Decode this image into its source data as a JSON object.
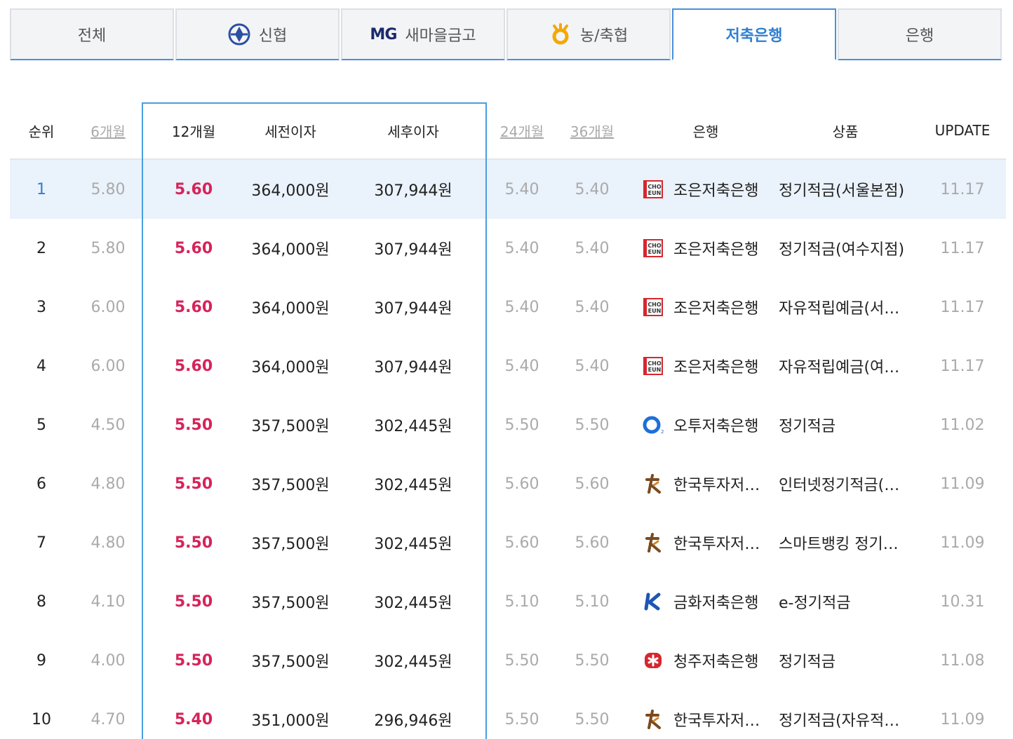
{
  "tabs": [
    {
      "label": "전체",
      "icon": "",
      "active": false
    },
    {
      "label": "신협",
      "icon": "shinhyup-logo-icon",
      "active": false
    },
    {
      "label": "새마을금고",
      "icon": "mg-logo-icon",
      "prefix": "MG",
      "active": false
    },
    {
      "label": "농/축협",
      "icon": "nh-logo-icon",
      "active": false
    },
    {
      "label": "저축은행",
      "icon": "",
      "active": true
    },
    {
      "label": "은행",
      "icon": "",
      "active": false
    }
  ],
  "header": {
    "rank": "순위",
    "m6": "6개월",
    "m12": "12개월",
    "pre_tax": "세전이자",
    "post_tax": "세후이자",
    "m24": "24개월",
    "m36": "36개월",
    "bank": "은행",
    "product": "상품",
    "update": "UPDATE"
  },
  "rows": [
    {
      "rank": "1",
      "m6": "5.80",
      "m12": "5.60",
      "pre": "364,000원",
      "post": "307,944원",
      "m24": "5.40",
      "m36": "5.40",
      "bank": "조은저축은행",
      "bank_icon": "choeun-logo-icon",
      "product": "정기적금(서울본점)",
      "update": "11.17"
    },
    {
      "rank": "2",
      "m6": "5.80",
      "m12": "5.60",
      "pre": "364,000원",
      "post": "307,944원",
      "m24": "5.40",
      "m36": "5.40",
      "bank": "조은저축은행",
      "bank_icon": "choeun-logo-icon",
      "product": "정기적금(여수지점)",
      "update": "11.17"
    },
    {
      "rank": "3",
      "m6": "6.00",
      "m12": "5.60",
      "pre": "364,000원",
      "post": "307,944원",
      "m24": "5.40",
      "m36": "5.40",
      "bank": "조은저축은행",
      "bank_icon": "choeun-logo-icon",
      "product": "자유적립예금(서…",
      "update": "11.17"
    },
    {
      "rank": "4",
      "m6": "6.00",
      "m12": "5.60",
      "pre": "364,000원",
      "post": "307,944원",
      "m24": "5.40",
      "m36": "5.40",
      "bank": "조은저축은행",
      "bank_icon": "choeun-logo-icon",
      "product": "자유적립예금(여…",
      "update": "11.17"
    },
    {
      "rank": "5",
      "m6": "4.50",
      "m12": "5.50",
      "pre": "357,500원",
      "post": "302,445원",
      "m24": "5.50",
      "m36": "5.50",
      "bank": "오투저축은행",
      "bank_icon": "otoo-logo-icon",
      "product": "정기적금",
      "update": "11.02"
    },
    {
      "rank": "6",
      "m6": "4.80",
      "m12": "5.50",
      "pre": "357,500원",
      "post": "302,445원",
      "m24": "5.60",
      "m36": "5.60",
      "bank": "한국투자저…",
      "bank_icon": "korea-investment-logo-icon",
      "product": "인터넷정기적금(…",
      "update": "11.09"
    },
    {
      "rank": "7",
      "m6": "4.80",
      "m12": "5.50",
      "pre": "357,500원",
      "post": "302,445원",
      "m24": "5.60",
      "m36": "5.60",
      "bank": "한국투자저…",
      "bank_icon": "korea-investment-logo-icon",
      "product": "스마트뱅킹 정기…",
      "update": "11.09"
    },
    {
      "rank": "8",
      "m6": "4.10",
      "m12": "5.50",
      "pre": "357,500원",
      "post": "302,445원",
      "m24": "5.10",
      "m36": "5.10",
      "bank": "금화저축은행",
      "bank_icon": "geumhwa-logo-icon",
      "product": "e-정기적금",
      "update": "10.31"
    },
    {
      "rank": "9",
      "m6": "4.00",
      "m12": "5.50",
      "pre": "357,500원",
      "post": "302,445원",
      "m24": "5.50",
      "m36": "5.50",
      "bank": "청주저축은행",
      "bank_icon": "cheongju-logo-icon",
      "product": "정기적금",
      "update": "11.08"
    },
    {
      "rank": "10",
      "m6": "4.70",
      "m12": "5.40",
      "pre": "351,000원",
      "post": "296,946원",
      "m24": "5.50",
      "m36": "5.50",
      "bank": "한국투자저…",
      "bank_icon": "korea-investment-logo-icon",
      "product": "정기적금(자유적…",
      "update": "11.09"
    }
  ],
  "colors": {
    "accent": "#2f7fd1",
    "rate_highlight": "#d6245a",
    "muted": "#aaaaaa",
    "selected_row": "#eaf2fb"
  }
}
